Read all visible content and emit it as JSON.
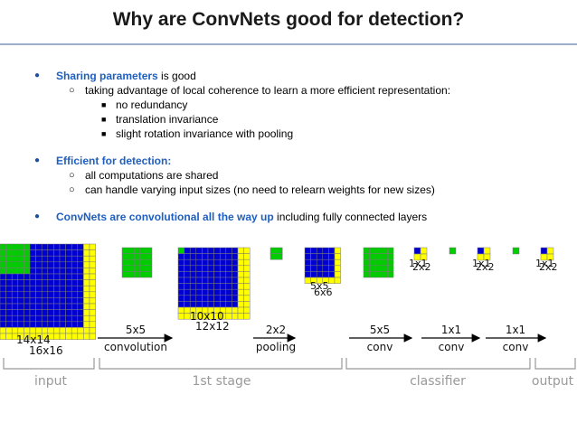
{
  "title": "Why are ConvNets good for detection?",
  "bullets": {
    "b1_bold": "Sharing parameters",
    "b1_rest": " is good",
    "b1_sub1": "taking advantage of local coherence to learn a more efficient representation:",
    "b1_sub1_a": "no redundancy",
    "b1_sub1_b": "translation invariance",
    "b1_sub1_c": "slight rotation invariance with pooling",
    "b2_bold": "Efficient for detection:",
    "b2_sub1": "all computations are shared",
    "b2_sub2": "can handle varying input sizes (no need to relearn weights for new sizes)",
    "b3_bold": "ConvNets are convolutional all the way up",
    "b3_rest": " including fully connected layers"
  },
  "diagram": {
    "input_sizes": [
      "14x14",
      "16x16"
    ],
    "stage1_sizes": [
      "10x10",
      "12x12"
    ],
    "pool_sizes": [
      "5x5",
      "6x6"
    ],
    "out_sizes": [
      "1x1",
      "2x2"
    ],
    "ops": [
      {
        "size": "5x5",
        "name": "convolution"
      },
      {
        "size": "2x2",
        "name": "pooling"
      },
      {
        "size": "5x5",
        "name": "conv"
      },
      {
        "size": "1x1",
        "name": "conv"
      },
      {
        "size": "1x1",
        "name": "conv"
      }
    ],
    "groups": [
      "input",
      "1st stage",
      "classifier",
      "output"
    ],
    "colors": {
      "blue": "#0000d0",
      "yellow": "#ffff00",
      "green": "#00cc00",
      "grid": "#7a7a7a",
      "label_gray": "#999999"
    }
  }
}
